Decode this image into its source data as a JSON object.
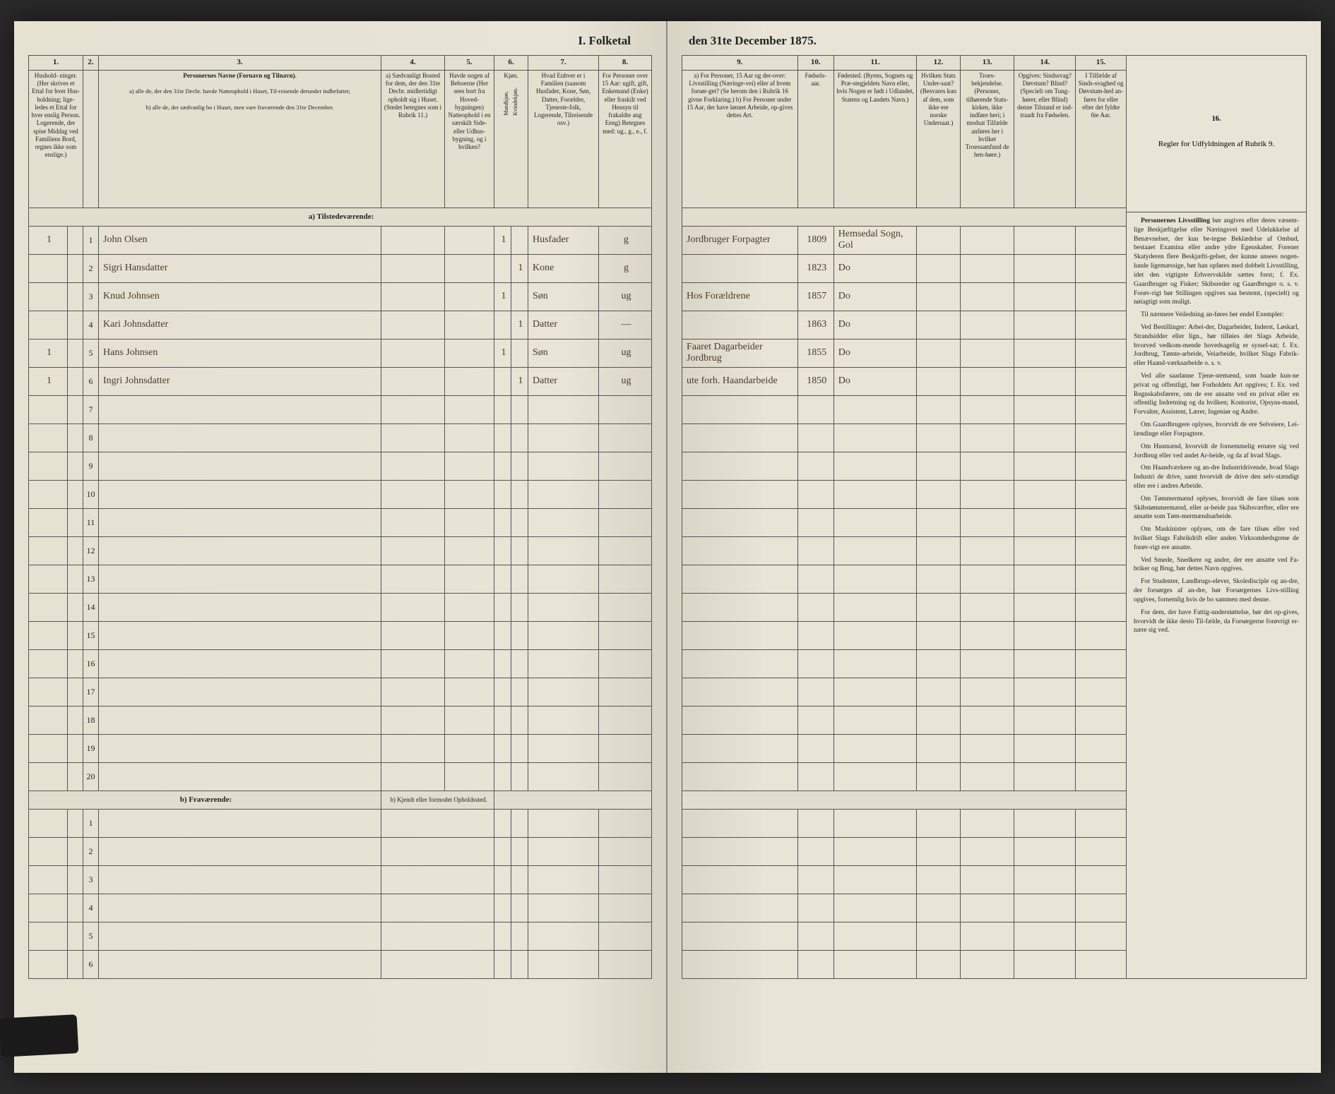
{
  "title_left": "I.  Folketal",
  "title_right": "den 31te December 1875.",
  "columns_left": {
    "c1": "1.",
    "c2": "2.",
    "c3": "3.",
    "c4": "4.",
    "c5": "5.",
    "c6": "6.",
    "c7": "7.",
    "c8": "8."
  },
  "columns_right": {
    "c9": "9.",
    "c10": "10.",
    "c11": "11.",
    "c12": "12.",
    "c13": "13.",
    "c14": "14.",
    "c15": "15.",
    "c16": "16."
  },
  "head_left": {
    "c1": "Hushold-\nninger.\n(Her skrives et Ettal for hver Hus-holdning; lige-ledes et Ettal for hver enslig Person.\nLogerende, der spise Middag ved Familiens Bord, regnes ikke som enslige.)",
    "c3_title": "Personernes Navne (Fornavn og Tilnavn).",
    "c3_a": "a) alle de, der den 31te Decbr. havde Natteophold i Huset, Til-reisende derunder indbefattet;",
    "c3_b": "b) alle de, der sædvanlig bo i Huset, men vare fraværende den 31te December.",
    "c4": "a) Sædvanligt Bosted for dem, der den 31te Decbr. midlertidigt opholdt sig i Huset.\n(Stedet betegnes som i Rubrik 11.)",
    "c5": "Havde nogen af Beboerne (Her sees bort fra Hoved-\nbygningen) Natteophold i en særskilt Side-eller Udhus-bygning, og i hvilken?",
    "c6": "Kjøn.",
    "c6a": "Mandkjøn.",
    "c6b": "Kvindekjøn.",
    "c7": "Hvad Enhver er i Familien\n(saasom Husfader, Kone, Søn, Datter, Forældre, Tjeneste-folk, Logerende, Tilreisende osv.)",
    "c8": "For Personer over 15 Aar: ugift, gift, Enkemand (Enke) eller fraskilt ved Hensyn til frakaldte ang Eeng)\nBetegnes med: ug., g., e., f."
  },
  "head_right": {
    "c9": "a) For Personer, 15 Aar og der-over: Livsstilling (Næringe-vei) eller af hvem forsør-get? (Se herom den i Rubrik 16 givne Forklaring.)\nb) For Personer under 15 Aar, der have lønnet Arbeide, op-gives dettes Art.",
    "c10": "Fødsels-\naar.",
    "c11": "Fødested.\n(Byens, Sognets og Præ-stegjeldets Navn eller, hvis Nogen er født i Udlandet, Statens og Landets Navn.)",
    "c12": "Hvilken Stats Under-saat?\n(Besvares kun af dem, som ikke ere norske Undersaat.)",
    "c13": "Troes-\nbekjendelse.\n(Personer, tilhørende Stats-kirken, ikke indføre heri; i modsat Tilfælde anføres her i hvilket Troessamfund de hen-høre.)",
    "c14": "Opgives: Sindssvag? Døvstum? Blind? (Specielt om Tung-hører, eller Blind) denne Tilstand er ind-traadt fra Fødselen.",
    "c15": "I Tilfælde af Sinds-svaghed og Døvstum-hed an-føres for eller efter det fyldte 6te Aar.",
    "c16_title": "Regler for Udfyldningen\naf\nRubrik 9."
  },
  "section_a": "a) Tilstedeværende:",
  "section_b": "b) Fraværende:",
  "section_b_col4": "b) Kjendt eller formodet Opholdssted.",
  "rows": [
    {
      "n": "1",
      "pre": "1",
      "name": "John Olsen",
      "c4": "",
      "c5": "",
      "sex": "1",
      "sexf": "",
      "rel": "Husfader",
      "stat": "g",
      "occ": "Jordbruger Forpagter",
      "yr": "1809",
      "place": "Hemsedal Sogn, Gol"
    },
    {
      "n": "2",
      "pre": "",
      "name": "Sigri Hansdatter",
      "c4": "",
      "c5": "",
      "sex": "",
      "sexf": "1",
      "rel": "Kone",
      "stat": "g",
      "occ": "",
      "yr": "1823",
      "place": "Do"
    },
    {
      "n": "3",
      "pre": "",
      "name": "Knud Johnsen",
      "c4": "",
      "c5": "",
      "sex": "1",
      "sexf": "",
      "rel": "Søn",
      "stat": "ug",
      "occ": "Hos Forældrene",
      "yr": "1857",
      "place": "Do"
    },
    {
      "n": "4",
      "pre": "",
      "name": "Kari Johnsdatter",
      "c4": "",
      "c5": "",
      "sex": "",
      "sexf": "1",
      "rel": "Datter",
      "stat": "—",
      "occ": "",
      "yr": "1863",
      "place": "Do"
    },
    {
      "n": "5",
      "pre": "1",
      "name": "Hans Johnsen",
      "c4": "",
      "c5": "",
      "sex": "1",
      "sexf": "",
      "rel": "Søn",
      "stat": "ug",
      "occ": "Faaret Dagarbeider Jordbrug",
      "yr": "1855",
      "place": "Do"
    },
    {
      "n": "6",
      "pre": "1",
      "name": "Ingri Johnsdatter",
      "c4": "",
      "c5": "",
      "sex": "",
      "sexf": "1",
      "rel": "Datter",
      "stat": "ug",
      "occ": "ute forh. Haandarbeide",
      "yr": "1850",
      "place": "Do"
    }
  ],
  "blank_rows_a": [
    "7",
    "8",
    "9",
    "10",
    "11",
    "12",
    "13",
    "14",
    "15",
    "16",
    "17",
    "18",
    "19",
    "20"
  ],
  "blank_rows_b": [
    "1",
    "2",
    "3",
    "4",
    "5",
    "6"
  ],
  "instructions": [
    {
      "lead": "Personernes Livsstilling",
      "text": " bør angives efter deres væsent-lige Beskjæftigelse eller Næringsvei med Udelukkelse af Benævnelser, der kun be-tegne Beklædelse af Ombud, bestaaet Examina eller andre ydre Egenskaber. Forener Skatyderen flere Beskjæfti-gelser, der kunne ansees nogen-lunde ligemæssige, bør han opføres med dobbelt Livsstilling, idet den vigtigste Erhvervskilde sættes forst; f. Ex. Gaardbruger og Fisker; Skibsreder og Gaardbruger o. s. v. Forøv-rigt bør Stillingen opgives saa bestemt, (specielt) og nøiagtigt som muligt."
    },
    {
      "lead": "",
      "text": "Til nærmere Veiledning an-føres her endel Exempler:"
    },
    {
      "lead": "",
      "text": "Ved Bestillinger: Arbei-der, Dagarbeider, Inderst, Løskarl, Strandsidder eller lign., bør tilføies det Slags Arbeide, hvorved vedkom-mende hovedsagelig er syssel-sat; f. Ex. Jordbrug, Tømte-arbeide, Veiarbeide, hvilket Slags Fabrik- eller Haand-værksarbeide o. s. v."
    },
    {
      "lead": "",
      "text": "Ved alle saadanne Tjene-stemænd, som baade kun-ne privat og offentligt, bør Forholdets Art opgives; f. Ex. ved Regnskabsførere, om de ere ansatte ved en privat eller en offentlig Indretning og da hvilken; Kontorist, Opsyns-mand, Forvalter, Assistent, Lærer, Ingeniør og Andre."
    },
    {
      "lead": "",
      "text": "Om Gaardbrugere oplyses, hvorvidt de ere Selveiere, Lei-lændinge eller Forpagtere."
    },
    {
      "lead": "",
      "text": "Om Husmænd, hvorvidt de fornemmelig ernære sig ved Jordbrug eller ved andet Ar-beide, og da af hvad Slags."
    },
    {
      "lead": "",
      "text": "Om Haandværkere og an-dre Industridrivende, hvad Slags Industri de drive, samt hvorvidt de drive den selv-stændigt eller ere i andres Arbeide."
    },
    {
      "lead": "",
      "text": "Om Tømmermænd oplyses, hvorvidt de fare tilsøs som Skibstømmermænd, eller ar-beide paa Skibsværfter, eller ere ansatte som Tøm-mermændsarbeide."
    },
    {
      "lead": "",
      "text": "Om Maskinister oplyses, om de fare tilsøs eller ved hvilket Slags Fabrikdrift eller anden Virksomhedsgrene de forøv-rigt ere ansatte."
    },
    {
      "lead": "",
      "text": "Ved Smede, Snedkere og andre, der ere ansatte ved Fa-briker og Brug, bør dettes Navn opgives."
    },
    {
      "lead": "",
      "text": "For Studenter, Landbrugs-elever, Skoledisciple og an-dre, der forsørges af an-dre, bør Forsørgernes Livs-stilling opgives, fornemlig hvis de bo sammen med denne."
    },
    {
      "lead": "",
      "text": "For dem, der have Fattig-understøttelse, bør det op-gives, hvorvidt de ikke desto Til-fælde, da Forsørgerne forøvrigt er-nære sig ved."
    }
  ],
  "colors": {
    "paper": "#e8e4d6",
    "line": "#555555",
    "ink_print": "#222222",
    "ink_hand": "#4a3a28",
    "bg": "#2a2a2a"
  }
}
